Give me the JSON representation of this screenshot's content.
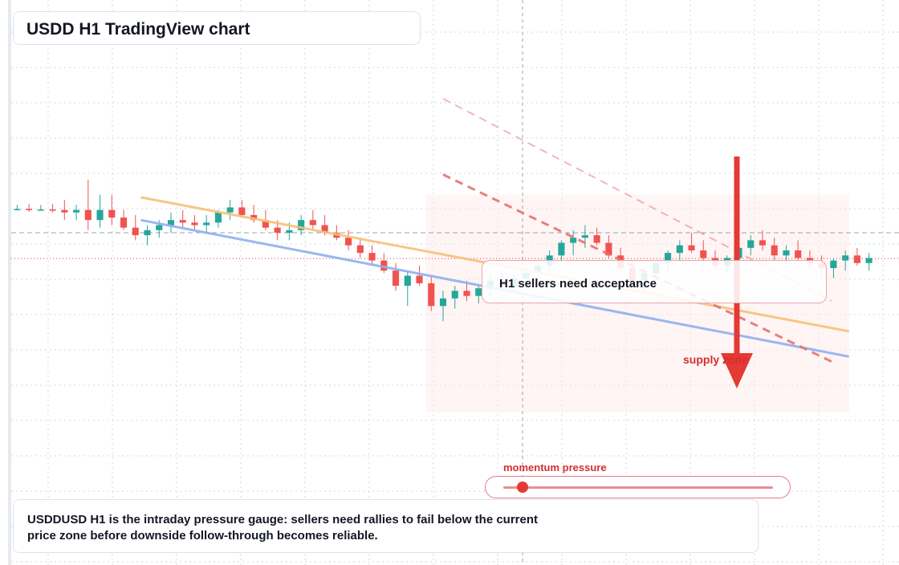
{
  "title": "USDD H1 TradingView chart",
  "annotations": {
    "note": "H1 sellers need acceptance",
    "supply": "supply zone",
    "gauge_label": "momentum pressure",
    "caption": "USDDUSD H1 is the intraday pressure gauge: sellers need rallies to fail below the current price zone before downside follow-through becomes reliable."
  },
  "gauge": {
    "level": 0.07
  },
  "colors": {
    "up": "#26a69a",
    "down": "#ef5350",
    "resistance": "#f6c177",
    "support": "#8fb0f0",
    "projection": "#e57373",
    "arrow": "#e53935",
    "zone": "#fdeceb",
    "grid": "#cfd8e6"
  },
  "chart_data": {
    "type": "candlestick",
    "timeframe": "H1",
    "symbol": "USDDUSD",
    "grid": true,
    "legend": false,
    "x_axis_labels_visible": false,
    "y_axis_labels_visible": false,
    "ylim": [
      0,
      100
    ],
    "current_price": 58.4,
    "reference_level": 63.5,
    "candles": [
      [
        68.0,
        69.0,
        67.9,
        68.2
      ],
      [
        68.2,
        69.2,
        67.6,
        68.0
      ],
      [
        68.0,
        69.0,
        67.8,
        68.1
      ],
      [
        68.1,
        69.2,
        67.5,
        68.0
      ],
      [
        68.0,
        70.0,
        66.0,
        67.5
      ],
      [
        67.5,
        69.0,
        66.0,
        68.0
      ],
      [
        68.0,
        74.0,
        64.0,
        66.0
      ],
      [
        66.0,
        71.0,
        64.5,
        68.0
      ],
      [
        68.0,
        71.0,
        65.0,
        66.5
      ],
      [
        66.5,
        68.0,
        64.0,
        64.5
      ],
      [
        64.5,
        67.0,
        62.0,
        63.0
      ],
      [
        63.0,
        65.0,
        61.0,
        64.0
      ],
      [
        64.0,
        66.0,
        62.5,
        65.0
      ],
      [
        65.0,
        67.5,
        63.5,
        66.0
      ],
      [
        66.0,
        68.0,
        64.5,
        65.5
      ],
      [
        65.5,
        67.0,
        64.0,
        65.0
      ],
      [
        65.0,
        67.0,
        63.5,
        65.5
      ],
      [
        65.5,
        68.0,
        64.5,
        67.5
      ],
      [
        67.5,
        70.0,
        66.0,
        68.5
      ],
      [
        68.5,
        70.0,
        66.5,
        67.0
      ],
      [
        67.0,
        69.0,
        65.5,
        66.0
      ],
      [
        66.0,
        68.0,
        64.0,
        64.5
      ],
      [
        64.5,
        66.0,
        62.0,
        63.5
      ],
      [
        63.5,
        65.5,
        62.0,
        64.0
      ],
      [
        64.0,
        67.0,
        63.0,
        66.0
      ],
      [
        66.0,
        68.0,
        64.0,
        65.0
      ],
      [
        65.0,
        67.0,
        63.0,
        63.5
      ],
      [
        63.5,
        65.0,
        62.0,
        62.5
      ],
      [
        62.5,
        64.0,
        60.0,
        61.0
      ],
      [
        61.0,
        62.5,
        58.5,
        59.5
      ],
      [
        59.5,
        61.0,
        57.0,
        58.0
      ],
      [
        58.0,
        59.5,
        55.5,
        56.0
      ],
      [
        56.0,
        57.5,
        52.0,
        53.0
      ],
      [
        53.0,
        56.0,
        49.0,
        55.0
      ],
      [
        55.0,
        57.0,
        53.0,
        53.5
      ],
      [
        53.5,
        55.0,
        48.0,
        49.0
      ],
      [
        49.0,
        52.0,
        46.0,
        50.5
      ],
      [
        50.5,
        53.0,
        48.5,
        52.0
      ],
      [
        52.0,
        54.0,
        50.0,
        51.0
      ],
      [
        51.0,
        53.0,
        49.5,
        52.5
      ],
      [
        52.5,
        55.0,
        51.0,
        54.0
      ],
      [
        54.0,
        56.0,
        52.0,
        53.0
      ],
      [
        53.0,
        55.0,
        51.5,
        54.5
      ],
      [
        54.5,
        56.5,
        53.0,
        55.5
      ],
      [
        55.5,
        57.5,
        54.0,
        57.0
      ],
      [
        57.0,
        60.0,
        55.0,
        59.0
      ],
      [
        59.0,
        62.0,
        57.5,
        61.5
      ],
      [
        61.5,
        64.0,
        59.0,
        62.5
      ],
      [
        62.5,
        65.0,
        60.5,
        63.0
      ],
      [
        63.0,
        64.5,
        61.0,
        61.5
      ],
      [
        61.5,
        63.0,
        58.5,
        59.0
      ],
      [
        59.0,
        60.5,
        56.0,
        56.5
      ],
      [
        56.5,
        58.0,
        53.0,
        54.0
      ],
      [
        54.0,
        56.5,
        52.0,
        55.5
      ],
      [
        55.5,
        58.0,
        54.0,
        57.5
      ],
      [
        57.5,
        60.0,
        56.0,
        59.5
      ],
      [
        59.5,
        62.0,
        58.0,
        61.0
      ],
      [
        61.0,
        63.5,
        59.5,
        60.0
      ],
      [
        60.0,
        62.0,
        57.5,
        58.5
      ],
      [
        58.5,
        60.0,
        56.0,
        57.0
      ],
      [
        57.0,
        59.0,
        55.5,
        58.5
      ],
      [
        58.5,
        61.0,
        57.0,
        60.5
      ],
      [
        60.5,
        63.0,
        59.0,
        62.0
      ],
      [
        62.0,
        64.0,
        60.0,
        61.0
      ],
      [
        61.0,
        62.5,
        58.0,
        59.0
      ],
      [
        59.0,
        61.0,
        57.0,
        60.0
      ],
      [
        60.0,
        62.0,
        58.0,
        58.5
      ],
      [
        58.5,
        60.0,
        56.5,
        57.5
      ],
      [
        57.5,
        59.0,
        55.0,
        56.5
      ],
      [
        56.5,
        58.5,
        54.5,
        58.0
      ],
      [
        58.0,
        60.0,
        56.0,
        59.0
      ],
      [
        59.0,
        60.5,
        57.0,
        57.5
      ],
      [
        57.5,
        59.5,
        56.0,
        58.5
      ]
    ],
    "lines": [
      {
        "name": "resistance",
        "style": "solid",
        "from": [
          0.15,
          70.5
        ],
        "to": [
          0.97,
          44.0
        ]
      },
      {
        "name": "support",
        "style": "solid",
        "from": [
          0.15,
          66.0
        ],
        "to": [
          0.97,
          39.0
        ]
      },
      {
        "name": "projection",
        "style": "dashed",
        "from": [
          0.5,
          75.0
        ],
        "to": [
          0.95,
          38.0
        ]
      },
      {
        "name": "projection-faint",
        "style": "dashed",
        "from": [
          0.5,
          90.0
        ],
        "to": [
          0.95,
          50.0
        ]
      }
    ]
  }
}
